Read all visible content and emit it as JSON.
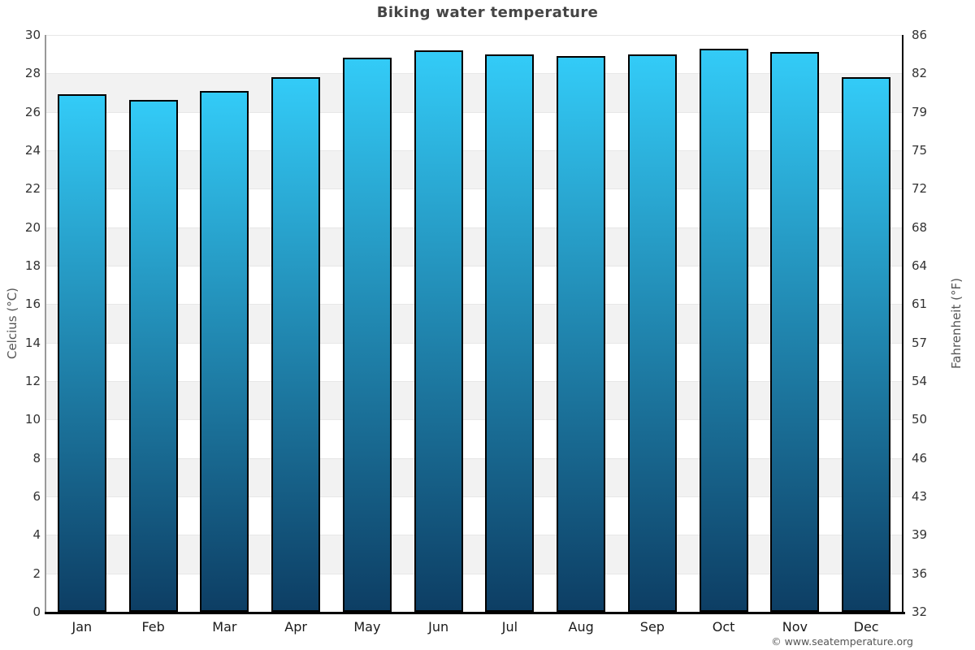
{
  "title": "Biking water temperature",
  "footer": "© www.seatemperature.org",
  "axes": {
    "left_label": "Celcius (°C)",
    "right_label": "Fahrenheit (°F)"
  },
  "chart_data": {
    "type": "bar",
    "title": "Biking water temperature",
    "categories": [
      "Jan",
      "Feb",
      "Mar",
      "Apr",
      "May",
      "Jun",
      "Jul",
      "Aug",
      "Sep",
      "Oct",
      "Nov",
      "Dec"
    ],
    "values": [
      26.9,
      26.6,
      27.1,
      27.8,
      28.8,
      29.2,
      29.0,
      28.9,
      29.0,
      29.3,
      29.1,
      27.8
    ],
    "series_name": "Water temperature",
    "xlabel": "",
    "ylabel_left": "Celcius (°C)",
    "ylabel_right": "Fahrenheit (°F)",
    "ylim_celsius": [
      0,
      30
    ],
    "ylim_fahrenheit": [
      32,
      86
    ],
    "yticks_celsius": [
      "30",
      "28",
      "26",
      "24",
      "22",
      "20",
      "18",
      "16",
      "14",
      "12",
      "10",
      "8",
      "6",
      "4",
      "2",
      "0"
    ],
    "yticks_fahrenheit": [
      "86",
      "82",
      "79",
      "75",
      "72",
      "68",
      "64",
      "61",
      "57",
      "54",
      "50",
      "46",
      "43",
      "39",
      "36",
      "32"
    ],
    "grid": "alternating-horizontal-bands",
    "legend": "none",
    "colors": {
      "bar_gradient_top": "#33cbf7",
      "bar_gradient_bottom": "#0d3e64",
      "bar_border": "#000000",
      "band_alt": "#f2f2f2",
      "band_line": "#e7e7e7",
      "axis_left_line": "#999999",
      "axis_right_line": "#000000",
      "axis_bottom_line": "#000000",
      "title_color": "#454545",
      "tick_label_color": "#333333",
      "axis_title_color": "#555555"
    }
  }
}
